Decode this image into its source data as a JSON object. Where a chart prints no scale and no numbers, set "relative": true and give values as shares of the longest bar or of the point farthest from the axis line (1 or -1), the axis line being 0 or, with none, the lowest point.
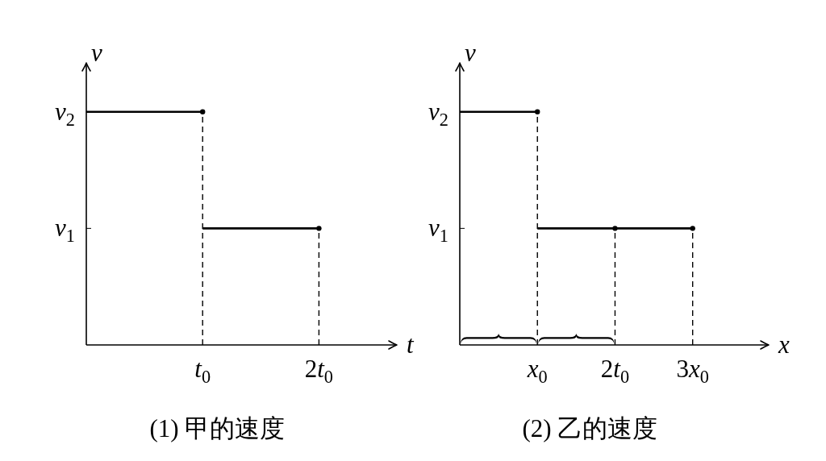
{
  "chart_data": [
    {
      "type": "line",
      "relative": true,
      "title": "(1) 甲的速度",
      "xlabel": "t",
      "ylabel": "v",
      "categories": [
        null,
        "t$_{0}$",
        "2t$_{0}$"
      ],
      "series": [
        {
          "name": "v$_{2}$",
          "color": "#000000",
          "values": [
            1,
            1,
            null
          ]
        },
        {
          "name": "v$_{1}$",
          "color": "#000000",
          "values": [
            null,
            0.5,
            0.5
          ]
        },
        {
          "type": "lollipop",
          "color": "#000000",
          "line_style": "dashed",
          "marker": "circle",
          "values": [
            null,
            1,
            0.5
          ]
        }
      ]
    },
    {
      "type": "line",
      "relative": true,
      "title": "(2) 乙的速度",
      "xlabel": "x",
      "ylabel": "v",
      "categories": [
        null,
        "x$_{0}$",
        "2t$_{0}$",
        "3x$_{0}$"
      ],
      "series": [
        {
          "name": "v$_{2}$",
          "color": "#000000",
          "values": [
            1,
            1,
            null,
            null
          ]
        },
        {
          "name": "v$_{1}$",
          "color": "#000000",
          "values": [
            null,
            0.5,
            0.5,
            0.5
          ]
        },
        {
          "type": "lollipop",
          "color": "#000000",
          "line_style": "dashed",
          "marker": "circle",
          "values": [
            null,
            1,
            0.5,
            0.5
          ]
        }
      ]
    }
  ]
}
